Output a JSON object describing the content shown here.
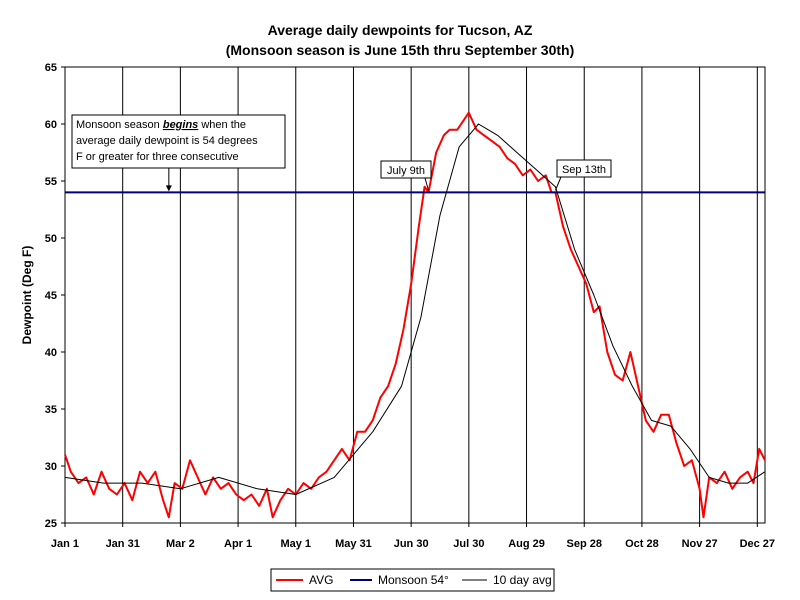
{
  "chart_data": {
    "type": "line",
    "title": "Average daily dewpoints for Tucson, AZ",
    "subtitle": "(Monsoon season is June 15th thru September 30th)",
    "ylabel": "Dewpoint (Deg F)",
    "xlabel": "",
    "ylim": [
      25,
      65
    ],
    "yticks": [
      25,
      30,
      35,
      40,
      45,
      50,
      55,
      60,
      65
    ],
    "xlim": [
      "01-01",
      "12-31"
    ],
    "xtick_labels": [
      "Jan 1",
      "Jan 31",
      "Mar 2",
      "Apr 1",
      "May 1",
      "May 31",
      "Jun 30",
      "Jul 30",
      "Aug 29",
      "Sep 28",
      "Oct 28",
      "Nov 27",
      "Dec 27"
    ],
    "xtick_dates": [
      "01-01",
      "01-31",
      "03-02",
      "04-01",
      "05-01",
      "05-31",
      "06-30",
      "07-30",
      "08-29",
      "09-28",
      "10-28",
      "11-27",
      "12-27"
    ],
    "grid": "vertical lines at each date tick",
    "legend_position": "bottom",
    "series": [
      {
        "name": "AVG",
        "color": "#ff0000",
        "points": [
          [
            "01-01",
            31
          ],
          [
            "01-04",
            29.5
          ],
          [
            "01-08",
            28.5
          ],
          [
            "01-12",
            29
          ],
          [
            "01-16",
            27.5
          ],
          [
            "01-20",
            29.5
          ],
          [
            "01-24",
            28
          ],
          [
            "01-28",
            27.5
          ],
          [
            "02-01",
            28.5
          ],
          [
            "02-05",
            27
          ],
          [
            "02-09",
            29.5
          ],
          [
            "02-13",
            28.5
          ],
          [
            "02-17",
            29.5
          ],
          [
            "02-21",
            27
          ],
          [
            "02-24",
            25.5
          ],
          [
            "02-27",
            28.5
          ],
          [
            "03-03",
            28
          ],
          [
            "03-07",
            30.5
          ],
          [
            "03-11",
            29
          ],
          [
            "03-15",
            27.5
          ],
          [
            "03-19",
            29
          ],
          [
            "03-23",
            28
          ],
          [
            "03-27",
            28.5
          ],
          [
            "03-31",
            27.5
          ],
          [
            "04-04",
            27
          ],
          [
            "04-08",
            27.5
          ],
          [
            "04-12",
            26.5
          ],
          [
            "04-16",
            28
          ],
          [
            "04-19",
            25.5
          ],
          [
            "04-23",
            27
          ],
          [
            "04-27",
            28
          ],
          [
            "05-01",
            27.5
          ],
          [
            "05-05",
            28.5
          ],
          [
            "05-09",
            28
          ],
          [
            "05-13",
            29
          ],
          [
            "05-17",
            29.5
          ],
          [
            "05-21",
            30.5
          ],
          [
            "05-25",
            31.5
          ],
          [
            "05-29",
            30.5
          ],
          [
            "06-02",
            33
          ],
          [
            "06-06",
            33
          ],
          [
            "06-10",
            34
          ],
          [
            "06-14",
            36
          ],
          [
            "06-18",
            37
          ],
          [
            "06-22",
            39
          ],
          [
            "06-26",
            42
          ],
          [
            "06-30",
            46
          ],
          [
            "07-04",
            51
          ],
          [
            "07-07",
            54.5
          ],
          [
            "07-09",
            54
          ],
          [
            "07-13",
            57.5
          ],
          [
            "07-17",
            59
          ],
          [
            "07-20",
            59.5
          ],
          [
            "07-24",
            59.5
          ],
          [
            "07-28",
            60.5
          ],
          [
            "07-30",
            61
          ],
          [
            "08-03",
            59.5
          ],
          [
            "08-07",
            59
          ],
          [
            "08-11",
            58.5
          ],
          [
            "08-15",
            58
          ],
          [
            "08-19",
            57
          ],
          [
            "08-23",
            56.5
          ],
          [
            "08-27",
            55.5
          ],
          [
            "08-31",
            56
          ],
          [
            "09-04",
            55
          ],
          [
            "09-08",
            55.5
          ],
          [
            "09-11",
            54
          ],
          [
            "09-13",
            54
          ],
          [
            "09-17",
            51
          ],
          [
            "09-21",
            49
          ],
          [
            "09-25",
            47.5
          ],
          [
            "09-29",
            46
          ],
          [
            "10-03",
            43.5
          ],
          [
            "10-06",
            44
          ],
          [
            "10-10",
            40
          ],
          [
            "10-14",
            38
          ],
          [
            "10-18",
            37.5
          ],
          [
            "10-22",
            40
          ],
          [
            "10-26",
            37
          ],
          [
            "10-30",
            34
          ],
          [
            "11-03",
            33
          ],
          [
            "11-07",
            34.5
          ],
          [
            "11-11",
            34.5
          ],
          [
            "11-15",
            32
          ],
          [
            "11-19",
            30
          ],
          [
            "11-23",
            30.5
          ],
          [
            "11-27",
            28
          ],
          [
            "11-29",
            25.5
          ],
          [
            "12-02",
            29
          ],
          [
            "12-06",
            28.5
          ],
          [
            "12-10",
            29.5
          ],
          [
            "12-14",
            28
          ],
          [
            "12-18",
            29
          ],
          [
            "12-22",
            29.5
          ],
          [
            "12-25",
            28.5
          ],
          [
            "12-28",
            31.5
          ],
          [
            "12-31",
            30.5
          ]
        ]
      },
      {
        "name": "Monsoon 54°",
        "color": "#000080",
        "points": [
          [
            "01-01",
            54
          ],
          [
            "12-31",
            54
          ]
        ]
      },
      {
        "name": "10 day avg",
        "color": "#000000",
        "points": [
          [
            "01-01",
            29
          ],
          [
            "01-21",
            28.5
          ],
          [
            "02-10",
            28.5
          ],
          [
            "03-02",
            28
          ],
          [
            "03-22",
            29
          ],
          [
            "04-11",
            28
          ],
          [
            "05-01",
            27.5
          ],
          [
            "05-21",
            29
          ],
          [
            "06-10",
            33
          ],
          [
            "06-25",
            37
          ],
          [
            "07-05",
            43
          ],
          [
            "07-15",
            52
          ],
          [
            "07-25",
            58
          ],
          [
            "08-04",
            60
          ],
          [
            "08-14",
            59
          ],
          [
            "08-24",
            57.5
          ],
          [
            "09-03",
            56
          ],
          [
            "09-13",
            54.5
          ],
          [
            "09-23",
            49
          ],
          [
            "10-03",
            45
          ],
          [
            "10-13",
            40.5
          ],
          [
            "10-23",
            37
          ],
          [
            "11-02",
            34
          ],
          [
            "11-12",
            33.5
          ],
          [
            "11-22",
            31.5
          ],
          [
            "12-02",
            29
          ],
          [
            "12-12",
            28.5
          ],
          [
            "12-22",
            28.5
          ],
          [
            "12-31",
            29.5
          ]
        ]
      }
    ],
    "annotations": [
      {
        "lines": [
          "Monsoon season ",
          "begins",
          " when the",
          "average daily dewpoint is 54 degrees",
          "F or greater for three consecutive"
        ],
        "target_date": "02-24",
        "target_value": 54
      },
      {
        "text": "July 9th",
        "target_date": "07-09",
        "target_value": 54
      },
      {
        "text": "Sep 13th",
        "target_date": "09-13",
        "target_value": 54
      }
    ]
  },
  "colors": {
    "background": "#ffffff",
    "plot_background": "#ffffff",
    "avg_line": "#ff0000",
    "monsoon_line": "#000080",
    "avg10_line": "#000000"
  }
}
